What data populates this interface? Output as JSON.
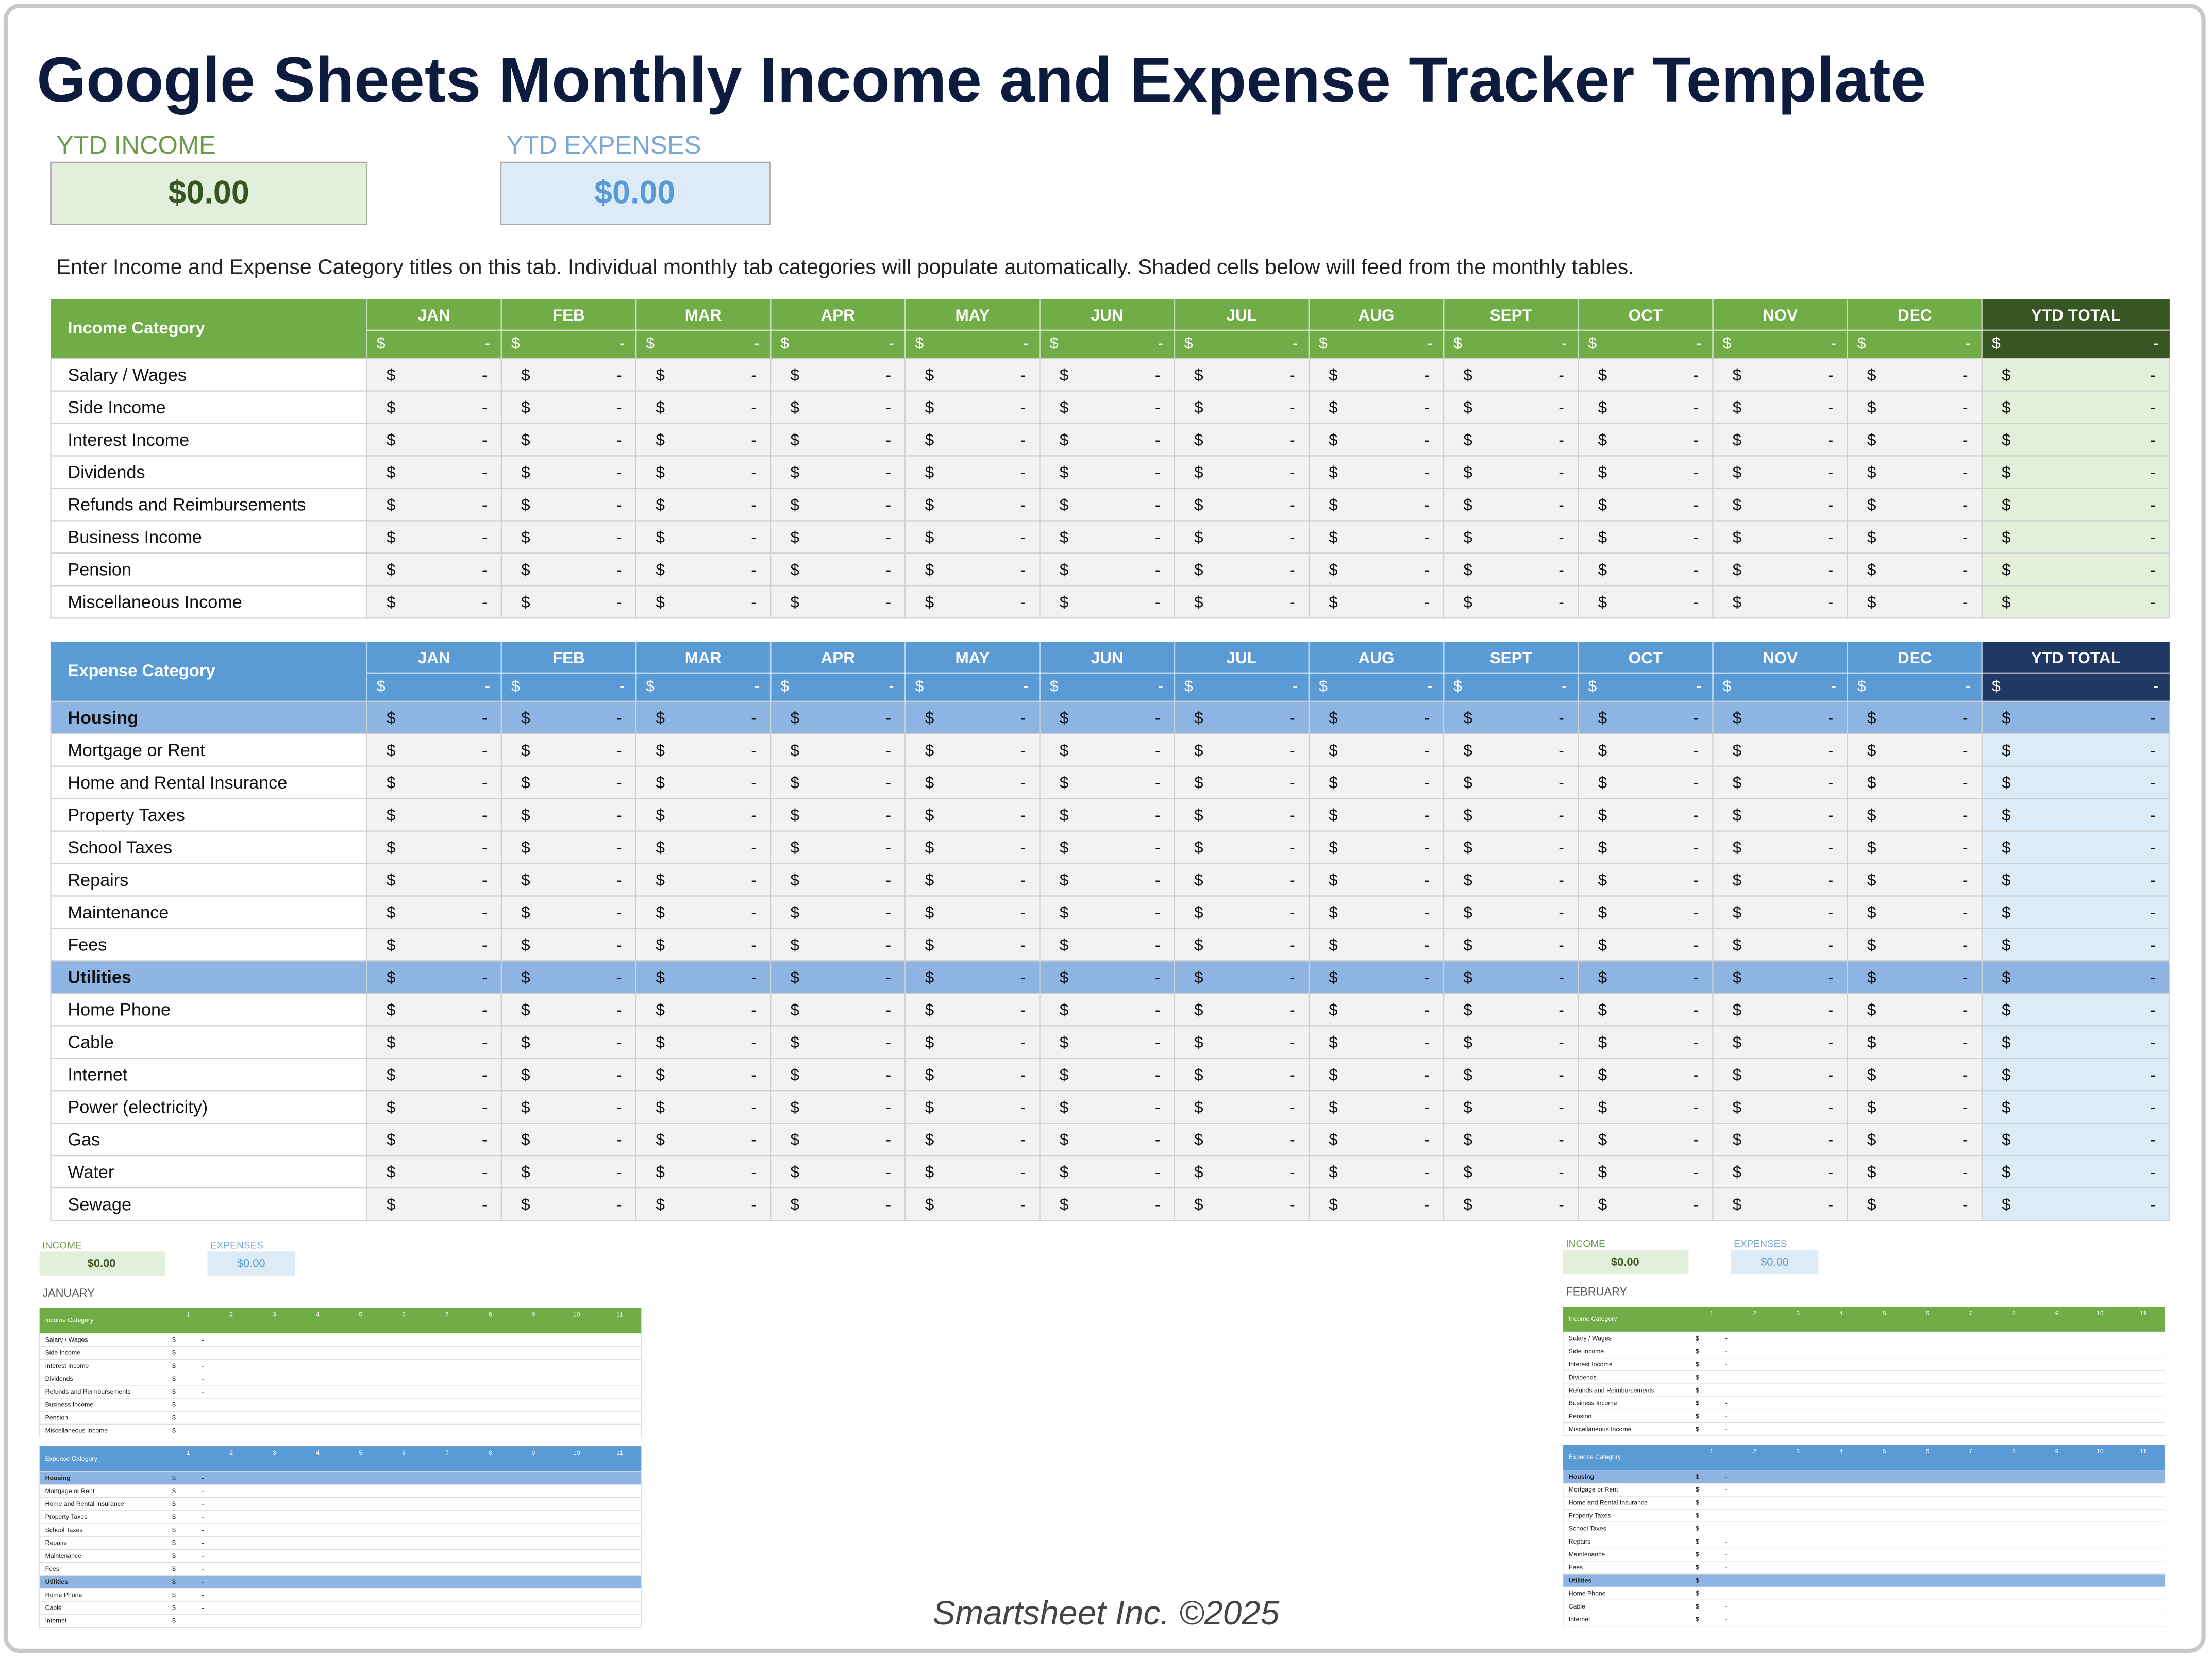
{
  "title": "Google Sheets Monthly Income and Expense Tracker Template",
  "summary": {
    "income": {
      "label": "YTD INCOME",
      "value": "$0.00"
    },
    "expenses": {
      "label": "YTD EXPENSES",
      "value": "$0.00"
    }
  },
  "instructions": "Enter Income and Expense Category titles on this tab.  Individual monthly tab categories will populate automatically. Shaded cells below will feed from the monthly tables.",
  "cell": {
    "currency": "$",
    "empty": "-"
  },
  "months": [
    "JAN",
    "FEB",
    "MAR",
    "APR",
    "MAY",
    "JUN",
    "JUL",
    "AUG",
    "SEPT",
    "OCT",
    "NOV",
    "DEC"
  ],
  "total_header": "YTD TOTAL",
  "income_table": {
    "header": "Income Category",
    "rows": [
      {
        "label": "Salary / Wages"
      },
      {
        "label": "Side Income"
      },
      {
        "label": "Interest Income"
      },
      {
        "label": "Dividends"
      },
      {
        "label": "Refunds and Reimbursements"
      },
      {
        "label": "Business Income"
      },
      {
        "label": "Pension"
      },
      {
        "label": "Miscellaneous Income"
      }
    ]
  },
  "expense_table": {
    "header": "Expense Category",
    "rows": [
      {
        "label": "Housing",
        "section": true
      },
      {
        "label": "Mortgage or Rent"
      },
      {
        "label": "Home and Rental Insurance"
      },
      {
        "label": "Property Taxes"
      },
      {
        "label": "School Taxes"
      },
      {
        "label": "Repairs"
      },
      {
        "label": "Maintenance"
      },
      {
        "label": "Fees"
      },
      {
        "label": "Utilities",
        "section": true
      },
      {
        "label": "Home Phone"
      },
      {
        "label": "Cable"
      },
      {
        "label": "Internet"
      },
      {
        "label": "Power (electricity)"
      },
      {
        "label": "Gas"
      },
      {
        "label": "Water"
      },
      {
        "label": "Sewage"
      }
    ]
  },
  "thumbnails": [
    {
      "income_label": "INCOME",
      "income_value": "$0.00",
      "expenses_label": "EXPENSES",
      "expenses_value": "$0.00",
      "month": "JANUARY"
    },
    {
      "income_label": "INCOME",
      "income_value": "$0.00",
      "expenses_label": "EXPENSES",
      "expenses_value": "$0.00",
      "month": "FEBRUARY"
    }
  ],
  "days": [
    1,
    2,
    3,
    4,
    5,
    6,
    7,
    8,
    9,
    10,
    11
  ],
  "footer": "Smartsheet Inc. ©2025"
}
